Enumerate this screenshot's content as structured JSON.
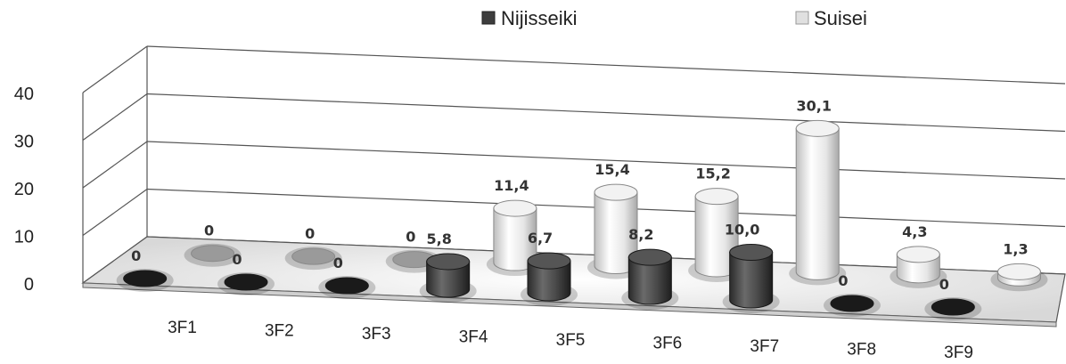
{
  "chart_data": {
    "type": "bar",
    "categories": [
      "3F1",
      "3F2",
      "3F3",
      "3F4",
      "3F5",
      "3F6",
      "3F7",
      "3F8",
      "3F9"
    ],
    "series": [
      {
        "name": "Nijisseiki",
        "values": [
          0,
          0,
          0,
          5.8,
          6.7,
          8.2,
          10.0,
          0,
          0
        ],
        "labels": [
          "0",
          "0",
          "0",
          "5,8",
          "6,7",
          "8,2",
          "10,0",
          "0",
          "0"
        ],
        "color": "#3d3d3d"
      },
      {
        "name": "Suisei",
        "values": [
          0,
          0,
          0,
          11.4,
          15.4,
          15.2,
          30.1,
          4.3,
          1.3
        ],
        "labels": [
          "0",
          "0",
          "0",
          "11,4",
          "15,4",
          "15,2",
          "30,1",
          "4,3",
          "1,3"
        ],
        "color": "#d9d9d9"
      }
    ],
    "y_ticks": [
      "0",
      "10",
      "20",
      "30",
      "40"
    ],
    "ylim": [
      0,
      40
    ],
    "legend": "top-center",
    "grid": true,
    "style": "3d-cylinder"
  }
}
